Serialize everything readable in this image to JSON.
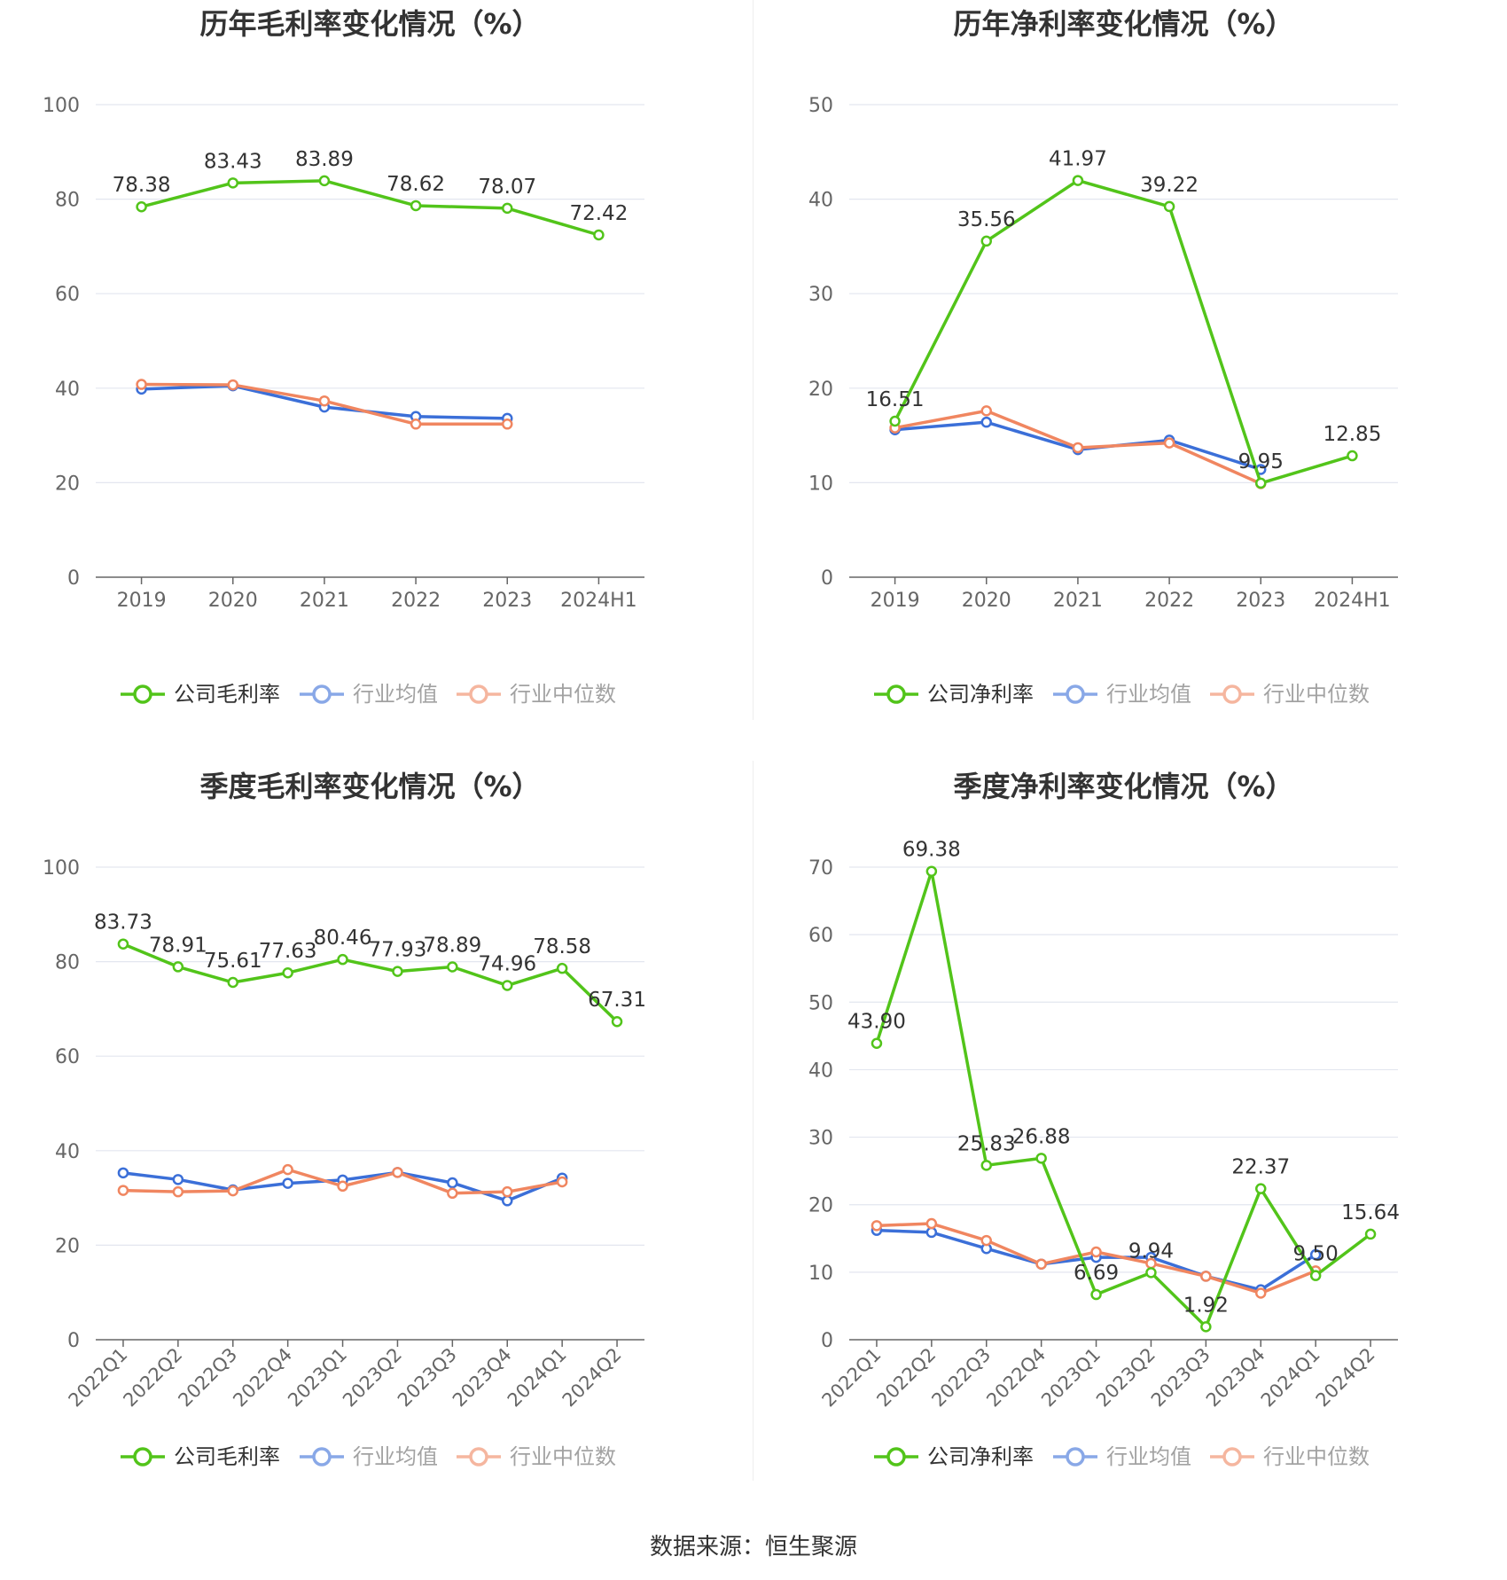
{
  "colors": {
    "company": "#52c41a",
    "avg": "#3b6fd8",
    "median": "#f08660",
    "grid": "#e3e6ef",
    "axis": "#666666",
    "label": "#333333"
  },
  "source": "数据来源：恒生聚源",
  "chart_data": [
    {
      "type": "line",
      "title": "历年毛利率变化情况（%）",
      "categories": [
        "2019",
        "2020",
        "2021",
        "2022",
        "2023",
        "2024H1"
      ],
      "ylim": [
        0,
        100
      ],
      "yticks": [
        0,
        20,
        40,
        60,
        80,
        100
      ],
      "grid": true,
      "legend_position": "bottom",
      "series": [
        {
          "name": "公司毛利率",
          "key": "company",
          "values": [
            78.38,
            83.43,
            83.89,
            78.62,
            78.07,
            72.42
          ],
          "labels": [
            "78.38",
            "83.43",
            "83.89",
            "78.62",
            "78.07",
            "72.42"
          ]
        },
        {
          "name": "行业均值",
          "key": "avg",
          "values": [
            39.8,
            40.5,
            36.0,
            34.0,
            33.6,
            null
          ]
        },
        {
          "name": "行业中位数",
          "key": "median",
          "values": [
            40.8,
            40.7,
            37.3,
            32.4,
            32.4,
            null
          ]
        }
      ]
    },
    {
      "type": "line",
      "title": "历年净利率变化情况（%）",
      "categories": [
        "2019",
        "2020",
        "2021",
        "2022",
        "2023",
        "2024H1"
      ],
      "ylim": [
        0,
        50
      ],
      "yticks": [
        0,
        10,
        20,
        30,
        40,
        50
      ],
      "grid": true,
      "legend_position": "bottom",
      "series": [
        {
          "name": "公司净利率",
          "key": "company",
          "values": [
            16.51,
            35.56,
            41.97,
            39.22,
            9.95,
            12.85
          ],
          "labels": [
            "16.51",
            "35.56",
            "41.97",
            "39.22",
            "9.95",
            "12.85"
          ]
        },
        {
          "name": "行业均值",
          "key": "avg",
          "values": [
            15.6,
            16.4,
            13.5,
            14.5,
            11.4,
            null
          ]
        },
        {
          "name": "行业中位数",
          "key": "median",
          "values": [
            15.8,
            17.6,
            13.7,
            14.2,
            9.9,
            null
          ]
        }
      ]
    },
    {
      "type": "line",
      "title": "季度毛利率变化情况（%）",
      "categories": [
        "2022Q1",
        "2022Q2",
        "2022Q3",
        "2022Q4",
        "2023Q1",
        "2023Q2",
        "2023Q3",
        "2023Q4",
        "2024Q1",
        "2024Q2"
      ],
      "ylim": [
        0,
        100
      ],
      "yticks": [
        0,
        20,
        40,
        60,
        80,
        100
      ],
      "grid": true,
      "legend_position": "bottom",
      "series": [
        {
          "name": "公司毛利率",
          "key": "company",
          "values": [
            83.73,
            78.91,
            75.61,
            77.63,
            80.46,
            77.93,
            78.89,
            74.96,
            78.58,
            67.31
          ],
          "labels": [
            "83.73",
            "78.91",
            "75.61",
            "77.63",
            "80.46",
            "77.93",
            "78.89",
            "74.96",
            "78.58",
            "67.31"
          ]
        },
        {
          "name": "行业均值",
          "key": "avg",
          "values": [
            35.3,
            33.9,
            31.7,
            33.1,
            33.8,
            35.4,
            33.2,
            29.4,
            34.2,
            null
          ]
        },
        {
          "name": "行业中位数",
          "key": "median",
          "values": [
            31.6,
            31.3,
            31.5,
            36.0,
            32.5,
            35.4,
            31.0,
            31.3,
            33.4,
            null
          ]
        }
      ]
    },
    {
      "type": "line",
      "title": "季度净利率变化情况（%）",
      "categories": [
        "2022Q1",
        "2022Q2",
        "2022Q3",
        "2022Q4",
        "2023Q1",
        "2023Q2",
        "2023Q3",
        "2023Q4",
        "2024Q1",
        "2024Q2"
      ],
      "ylim": [
        0,
        70
      ],
      "yticks": [
        0,
        10,
        20,
        30,
        40,
        50,
        60,
        70
      ],
      "grid": true,
      "legend_position": "bottom",
      "series": [
        {
          "name": "公司净利率",
          "key": "company",
          "values": [
            43.9,
            69.38,
            25.83,
            26.88,
            6.69,
            9.94,
            1.92,
            22.37,
            9.5,
            15.64
          ],
          "labels": [
            "43.90",
            "69.38",
            "25.83",
            "26.88",
            "6.69",
            "9.94",
            "1.92",
            "22.37",
            "9.50",
            "15.64"
          ]
        },
        {
          "name": "行业均值",
          "key": "avg",
          "values": [
            16.2,
            15.9,
            13.5,
            11.2,
            12.2,
            12.2,
            9.4,
            7.4,
            12.6,
            null
          ]
        },
        {
          "name": "行业中位数",
          "key": "median",
          "values": [
            16.9,
            17.2,
            14.7,
            11.2,
            13.0,
            11.3,
            9.4,
            6.9,
            10.2,
            null
          ]
        }
      ]
    }
  ]
}
